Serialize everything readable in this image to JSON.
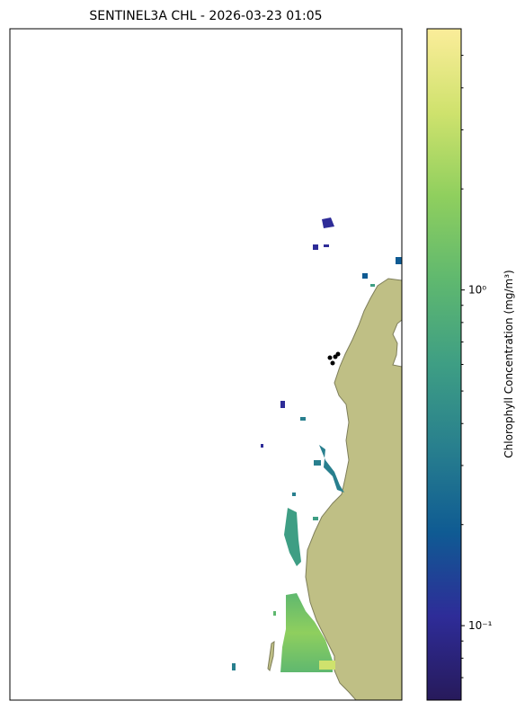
{
  "map": {
    "title": "SENTINEL3A CHL - 2026-03-23 01:05",
    "colorbar": {
      "label": "Chlorophyll Concentration (mg/m³)",
      "scale": "log",
      "lim": [
        0.06,
        6
      ],
      "ticks": [
        {
          "value": 0.1,
          "label": "10⁻¹"
        },
        {
          "value": 1,
          "label": "10⁰"
        }
      ],
      "minor_ticks": [
        0.07,
        0.08,
        0.09,
        0.2,
        0.3,
        0.4,
        0.5,
        0.6,
        0.7,
        0.8,
        0.9,
        2,
        3,
        4,
        5
      ],
      "colors": [
        "#271a5b",
        "#2e2c98",
        "#0f5b93",
        "#287f8e",
        "#3e9e84",
        "#5fb86f",
        "#8fcf5e",
        "#cfe26d",
        "#fbed9a"
      ]
    }
  }
}
